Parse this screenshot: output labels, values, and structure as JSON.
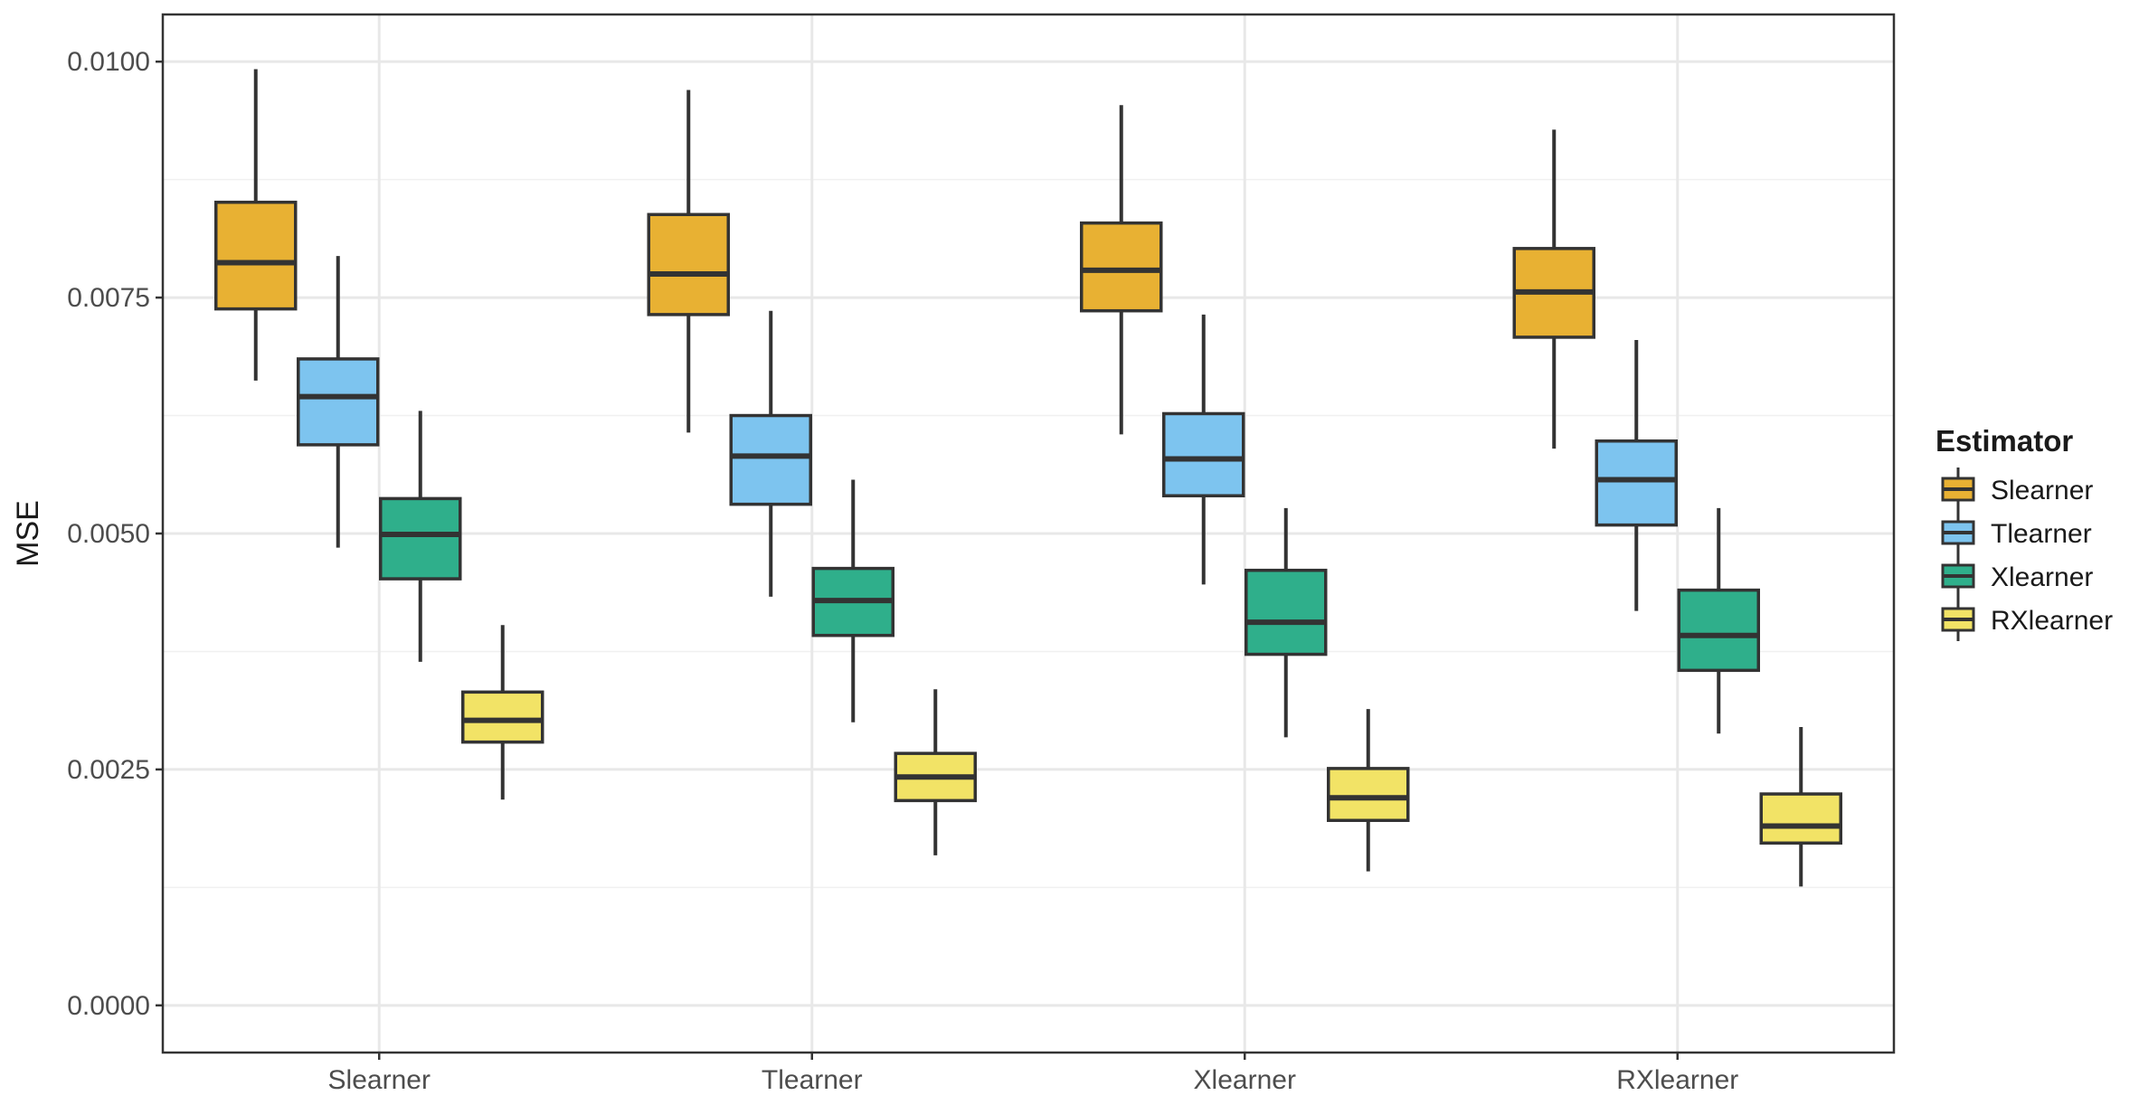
{
  "chart_data": {
    "type": "boxplot",
    "title": "",
    "xlabel": "",
    "ylabel": "MSE",
    "ylim": [
      -0.0005,
      0.0105
    ],
    "y_ticks": [
      "0.0000",
      "0.0025",
      "0.0050",
      "0.0075",
      "0.0100"
    ],
    "categories": [
      "Slearner",
      "Tlearner",
      "Xlearner",
      "RXlearner"
    ],
    "legend": {
      "title": "Estimator",
      "position": "right",
      "entries": [
        "Slearner",
        "Tlearner",
        "Xlearner",
        "RXlearner"
      ]
    },
    "series": [
      {
        "name": "Slearner",
        "color": "#E8B133",
        "boxes": [
          {
            "category": "Slearner",
            "min": 0.00662,
            "q1": 0.00738,
            "median": 0.00787,
            "q3": 0.00851,
            "max": 0.00992
          },
          {
            "category": "Tlearner",
            "min": 0.00607,
            "q1": 0.00732,
            "median": 0.00775,
            "q3": 0.00838,
            "max": 0.0097
          },
          {
            "category": "Xlearner",
            "min": 0.00605,
            "q1": 0.00736,
            "median": 0.00779,
            "q3": 0.00829,
            "max": 0.00954
          },
          {
            "category": "RXlearner",
            "min": 0.0059,
            "q1": 0.00708,
            "median": 0.00756,
            "q3": 0.00802,
            "max": 0.00928
          }
        ]
      },
      {
        "name": "Tlearner",
        "color": "#7DC4EF",
        "boxes": [
          {
            "category": "Slearner",
            "min": 0.00485,
            "q1": 0.00594,
            "median": 0.00645,
            "q3": 0.00685,
            "max": 0.00794
          },
          {
            "category": "Tlearner",
            "min": 0.00433,
            "q1": 0.00531,
            "median": 0.00582,
            "q3": 0.00625,
            "max": 0.00736
          },
          {
            "category": "Xlearner",
            "min": 0.00446,
            "q1": 0.0054,
            "median": 0.00579,
            "q3": 0.00627,
            "max": 0.00732
          },
          {
            "category": "RXlearner",
            "min": 0.00418,
            "q1": 0.00509,
            "median": 0.00557,
            "q3": 0.00598,
            "max": 0.00705
          }
        ]
      },
      {
        "name": "Xlearner",
        "color": "#2FAF8B",
        "boxes": [
          {
            "category": "Slearner",
            "min": 0.00364,
            "q1": 0.00452,
            "median": 0.00499,
            "q3": 0.00537,
            "max": 0.0063
          },
          {
            "category": "Tlearner",
            "min": 0.003,
            "q1": 0.00392,
            "median": 0.00429,
            "q3": 0.00463,
            "max": 0.00557
          },
          {
            "category": "Xlearner",
            "min": 0.00284,
            "q1": 0.00372,
            "median": 0.00406,
            "q3": 0.00461,
            "max": 0.00527
          },
          {
            "category": "RXlearner",
            "min": 0.00288,
            "q1": 0.00355,
            "median": 0.00392,
            "q3": 0.0044,
            "max": 0.00527
          }
        ]
      },
      {
        "name": "RXlearner",
        "color": "#F2E366",
        "boxes": [
          {
            "category": "Slearner",
            "min": 0.00218,
            "q1": 0.00279,
            "median": 0.00302,
            "q3": 0.00332,
            "max": 0.00403
          },
          {
            "category": "Tlearner",
            "min": 0.00159,
            "q1": 0.00217,
            "median": 0.00242,
            "q3": 0.00267,
            "max": 0.00335
          },
          {
            "category": "Xlearner",
            "min": 0.00142,
            "q1": 0.00196,
            "median": 0.0022,
            "q3": 0.00251,
            "max": 0.00314
          },
          {
            "category": "RXlearner",
            "min": 0.00126,
            "q1": 0.00172,
            "median": 0.0019,
            "q3": 0.00224,
            "max": 0.00295
          }
        ]
      }
    ]
  }
}
